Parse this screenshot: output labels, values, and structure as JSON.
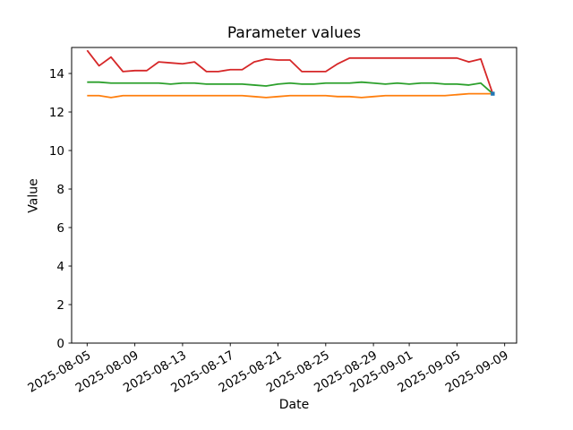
{
  "chart_data": {
    "type": "line",
    "title": "Parameter values",
    "xlabel": "Date",
    "ylabel": "Value",
    "grid": false,
    "legend": "none",
    "tick_rotation": 30,
    "ylim": [
      0,
      15.35
    ],
    "xlim_days": [
      -1.3,
      36.0
    ],
    "yticks": [
      0,
      2,
      4,
      6,
      8,
      10,
      12,
      14
    ],
    "xticks": [
      {
        "label": "2025-08-05",
        "day": 0
      },
      {
        "label": "2025-08-09",
        "day": 4
      },
      {
        "label": "2025-08-13",
        "day": 8
      },
      {
        "label": "2025-08-17",
        "day": 12
      },
      {
        "label": "2025-08-21",
        "day": 16
      },
      {
        "label": "2025-08-25",
        "day": 20
      },
      {
        "label": "2025-08-29",
        "day": 24
      },
      {
        "label": "2025-09-01",
        "day": 27
      },
      {
        "label": "2025-09-05",
        "day": 31
      },
      {
        "label": "2025-09-09",
        "day": 35
      }
    ],
    "x": [
      "2025-08-05",
      "2025-08-06",
      "2025-08-07",
      "2025-08-08",
      "2025-08-09",
      "2025-08-10",
      "2025-08-11",
      "2025-08-12",
      "2025-08-13",
      "2025-08-14",
      "2025-08-15",
      "2025-08-16",
      "2025-08-17",
      "2025-08-18",
      "2025-08-19",
      "2025-08-20",
      "2025-08-21",
      "2025-08-22",
      "2025-08-23",
      "2025-08-24",
      "2025-08-25",
      "2025-08-26",
      "2025-08-27",
      "2025-08-28",
      "2025-08-29",
      "2025-08-30",
      "2025-08-31",
      "2025-09-01",
      "2025-09-02",
      "2025-09-03",
      "2025-09-04",
      "2025-09-05",
      "2025-09-06",
      "2025-09-07",
      "2025-09-08"
    ],
    "series": [
      {
        "name": "red-parameter",
        "color": "#d62728",
        "marker": false,
        "values": [
          15.2,
          14.4,
          14.85,
          14.1,
          14.15,
          14.15,
          14.6,
          14.55,
          14.5,
          14.6,
          14.1,
          14.1,
          14.2,
          14.2,
          14.6,
          14.75,
          14.7,
          14.7,
          14.1,
          14.1,
          14.1,
          14.5,
          14.8,
          14.8,
          14.8,
          14.8,
          14.8,
          14.8,
          14.8,
          14.8,
          14.8,
          14.8,
          14.6,
          14.75,
          12.95
        ]
      },
      {
        "name": "green-parameter",
        "color": "#2ca02c",
        "marker": false,
        "values": [
          13.55,
          13.55,
          13.5,
          13.5,
          13.5,
          13.5,
          13.5,
          13.45,
          13.5,
          13.5,
          13.45,
          13.45,
          13.45,
          13.45,
          13.4,
          13.35,
          13.45,
          13.5,
          13.45,
          13.45,
          13.5,
          13.5,
          13.5,
          13.55,
          13.5,
          13.45,
          13.5,
          13.45,
          13.5,
          13.5,
          13.45,
          13.45,
          13.4,
          13.5,
          12.95
        ]
      },
      {
        "name": "orange-parameter",
        "color": "#ff7f0e",
        "marker": false,
        "values": [
          12.85,
          12.85,
          12.75,
          12.85,
          12.85,
          12.85,
          12.85,
          12.85,
          12.85,
          12.85,
          12.85,
          12.85,
          12.85,
          12.85,
          12.8,
          12.75,
          12.8,
          12.85,
          12.85,
          12.85,
          12.85,
          12.8,
          12.8,
          12.75,
          12.8,
          12.85,
          12.85,
          12.85,
          12.85,
          12.85,
          12.85,
          12.9,
          12.95,
          12.95,
          12.95
        ]
      },
      {
        "name": "blue-parameter",
        "color": "#1f77b4",
        "marker": true,
        "values": [
          null,
          null,
          null,
          null,
          null,
          null,
          null,
          null,
          null,
          null,
          null,
          null,
          null,
          null,
          null,
          null,
          null,
          null,
          null,
          null,
          null,
          null,
          null,
          null,
          null,
          null,
          null,
          null,
          null,
          null,
          null,
          null,
          null,
          null,
          12.95
        ]
      }
    ]
  },
  "style": {
    "spine_color": "#000000",
    "background": "#ffffff",
    "tick_font_px": 13.5,
    "line_width": 1.8
  }
}
